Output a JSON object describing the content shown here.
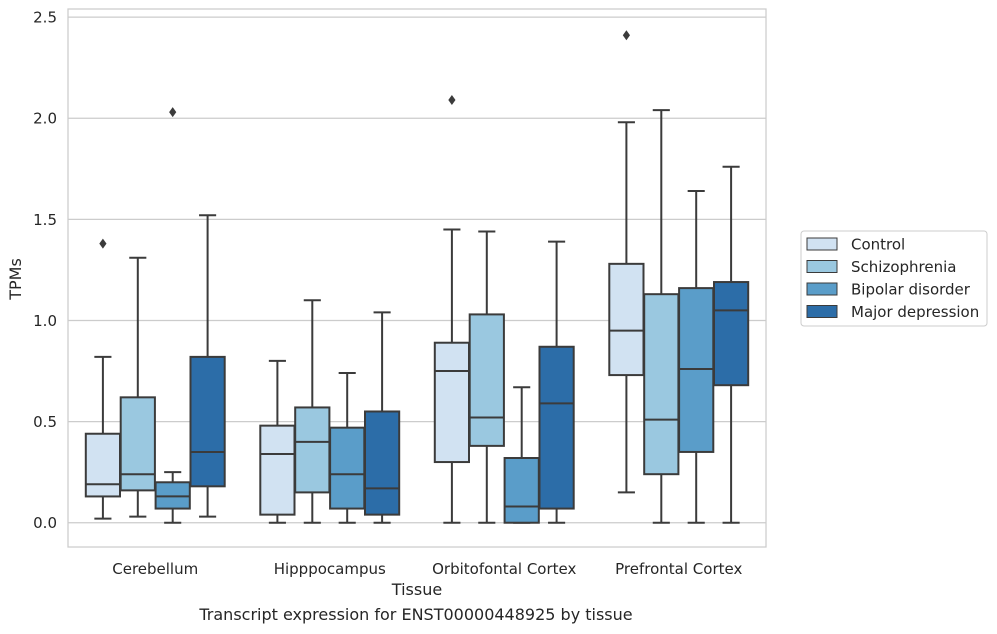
{
  "caption": "Transcript expression for ENST00000448925 by tissue",
  "chart_data": {
    "type": "box",
    "xlabel": "Tissue",
    "ylabel": "TPMs",
    "ylim": [
      -0.12,
      2.54
    ],
    "yticks": [
      0.0,
      0.5,
      1.0,
      1.5,
      2.0,
      2.5
    ],
    "ytick_labels": [
      "0.0",
      "0.5",
      "1.0",
      "1.5",
      "2.0",
      "2.5"
    ],
    "grid": true,
    "legend_position": "right",
    "categories": [
      "Cerebellum",
      "Hipppocampus",
      "Orbitofontal Cortex",
      "Prefrontal Cortex"
    ],
    "series": [
      {
        "name": "Control",
        "color": "#d1e2f2",
        "boxes": [
          {
            "whislo": 0.02,
            "q1": 0.13,
            "med": 0.19,
            "q3": 0.44,
            "whishi": 0.82,
            "fliers": [
              1.38
            ]
          },
          {
            "whislo": 0.0,
            "q1": 0.04,
            "med": 0.34,
            "q3": 0.48,
            "whishi": 0.8,
            "fliers": []
          },
          {
            "whislo": 0.0,
            "q1": 0.3,
            "med": 0.75,
            "q3": 0.89,
            "whishi": 1.45,
            "fliers": [
              2.09
            ]
          },
          {
            "whislo": 0.15,
            "q1": 0.73,
            "med": 0.95,
            "q3": 1.28,
            "whishi": 1.98,
            "fliers": [
              2.41
            ]
          }
        ]
      },
      {
        "name": "Schizophrenia",
        "color": "#9ac8e0",
        "boxes": [
          {
            "whislo": 0.03,
            "q1": 0.16,
            "med": 0.24,
            "q3": 0.62,
            "whishi": 1.31,
            "fliers": []
          },
          {
            "whislo": 0.0,
            "q1": 0.15,
            "med": 0.4,
            "q3": 0.57,
            "whishi": 1.1,
            "fliers": []
          },
          {
            "whislo": 0.0,
            "q1": 0.38,
            "med": 0.52,
            "q3": 1.03,
            "whishi": 1.44,
            "fliers": []
          },
          {
            "whislo": 0.0,
            "q1": 0.24,
            "med": 0.51,
            "q3": 1.13,
            "whishi": 2.04,
            "fliers": []
          }
        ]
      },
      {
        "name": "Bipolar disorder",
        "color": "#5a9dc9",
        "boxes": [
          {
            "whislo": 0.0,
            "q1": 0.07,
            "med": 0.13,
            "q3": 0.2,
            "whishi": 0.25,
            "fliers": [
              2.03
            ]
          },
          {
            "whislo": 0.0,
            "q1": 0.07,
            "med": 0.24,
            "q3": 0.47,
            "whishi": 0.74,
            "fliers": []
          },
          {
            "whislo": 0.0,
            "q1": 0.0,
            "med": 0.08,
            "q3": 0.32,
            "whishi": 0.67,
            "fliers": []
          },
          {
            "whislo": 0.0,
            "q1": 0.35,
            "med": 0.76,
            "q3": 1.16,
            "whishi": 1.64,
            "fliers": []
          }
        ]
      },
      {
        "name": "Major depression",
        "color": "#2c6da8",
        "boxes": [
          {
            "whislo": 0.03,
            "q1": 0.18,
            "med": 0.35,
            "q3": 0.82,
            "whishi": 1.52,
            "fliers": []
          },
          {
            "whislo": 0.0,
            "q1": 0.04,
            "med": 0.17,
            "q3": 0.55,
            "whishi": 1.04,
            "fliers": []
          },
          {
            "whislo": 0.0,
            "q1": 0.07,
            "med": 0.59,
            "q3": 0.87,
            "whishi": 1.39,
            "fliers": []
          },
          {
            "whislo": 0.0,
            "q1": 0.68,
            "med": 1.05,
            "q3": 1.19,
            "whishi": 1.76,
            "fliers": []
          }
        ]
      }
    ]
  }
}
